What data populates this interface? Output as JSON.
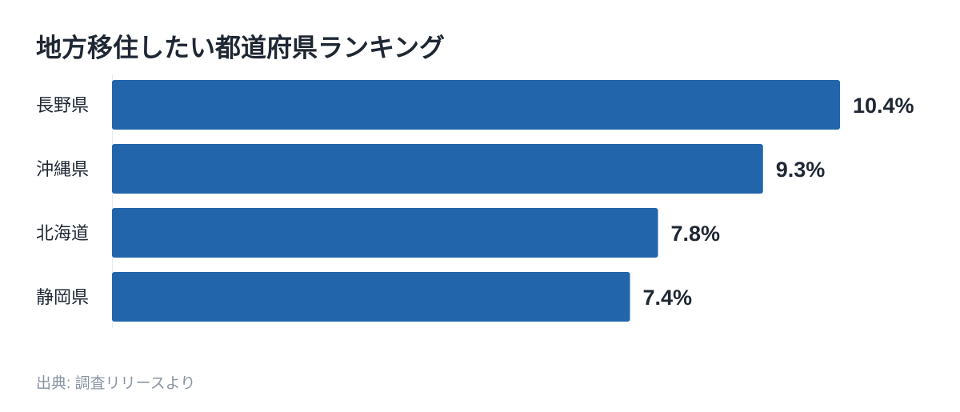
{
  "chart_data": {
    "type": "bar",
    "orientation": "horizontal",
    "title": "地方移住したい都道府県ランキング",
    "categories": [
      "長野県",
      "沖縄県",
      "北海道",
      "静岡県"
    ],
    "values": [
      10.4,
      9.3,
      7.8,
      7.4
    ],
    "value_labels": [
      "10.4%",
      "9.3%",
      "7.8%",
      "7.4%"
    ],
    "color": "#2265ab",
    "source": "出典: 調査リリースより"
  }
}
